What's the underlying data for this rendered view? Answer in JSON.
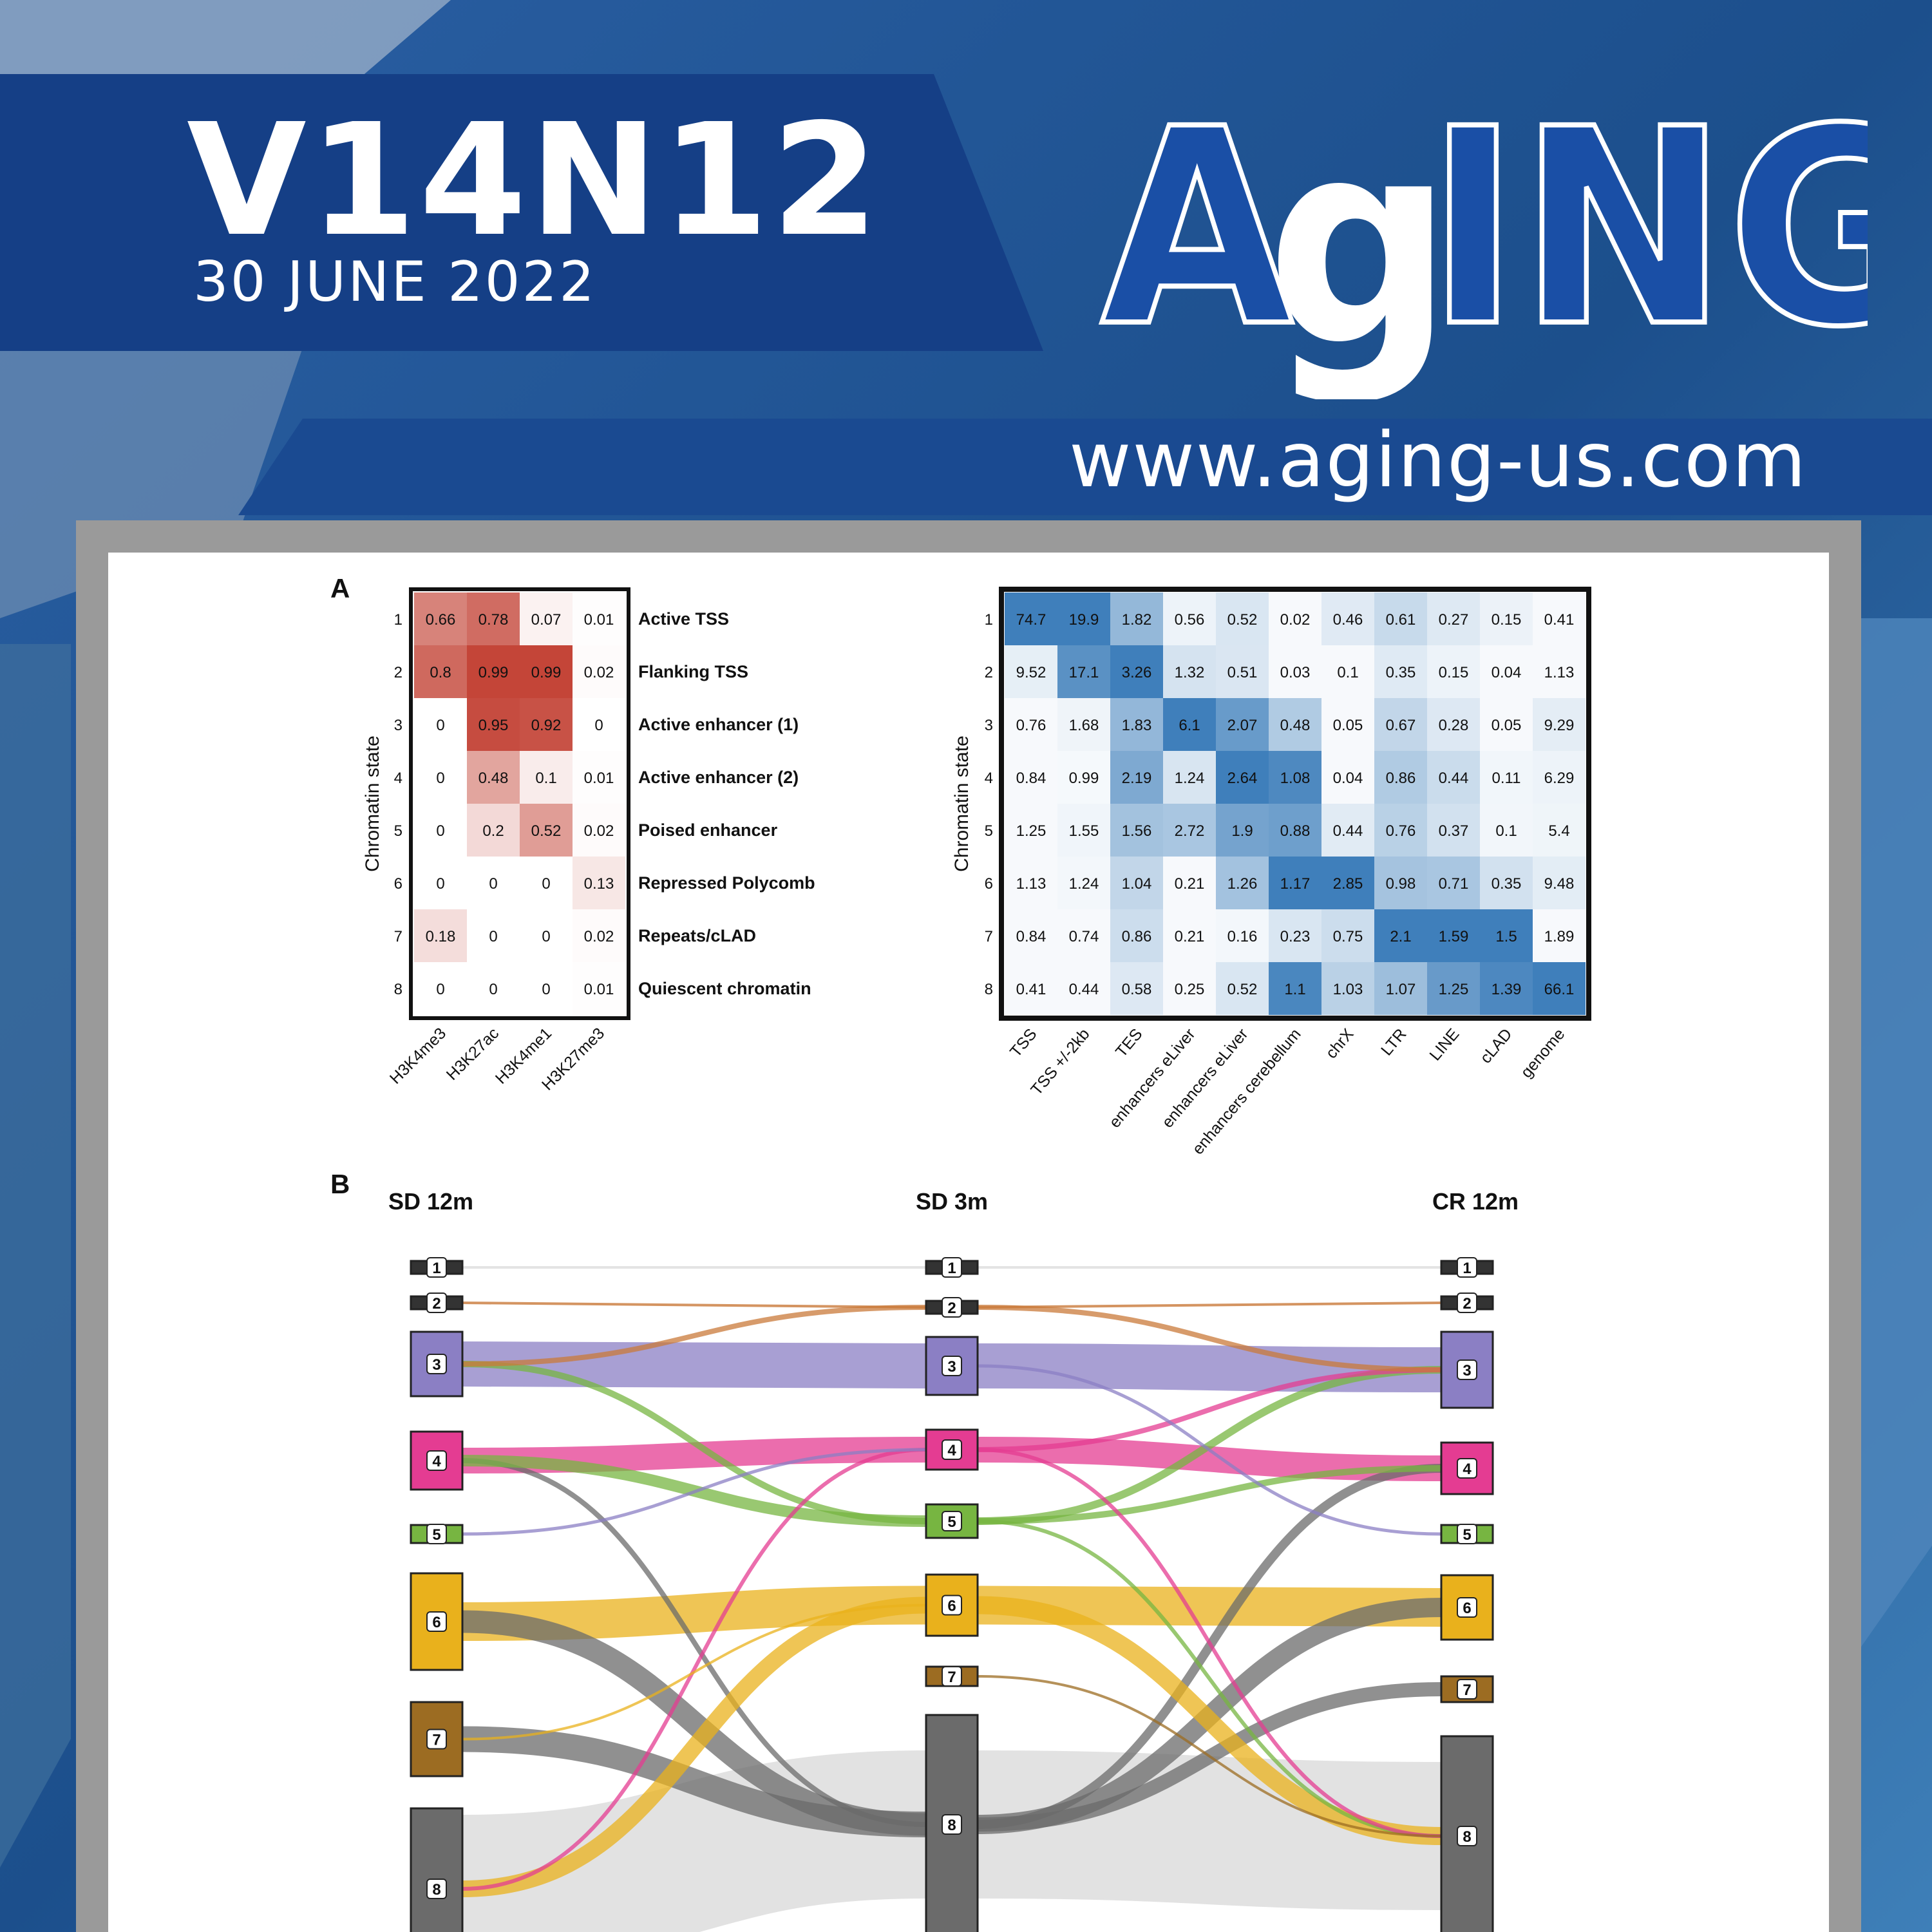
{
  "journal": {
    "volume_issue": "V14N12",
    "date": "30 JUNE 2022",
    "logo_text": "AgING",
    "url": "www.aging-us.com"
  },
  "colors": {
    "header_band": "#153f86",
    "logo_fill": "#1a4fa6",
    "heatmap_red": "#c0392b",
    "heatmap_blue": "#2e74b5",
    "state_3": "#8b7fc4",
    "state_4": "#e43c92",
    "state_5": "#77b541",
    "state_6": "#e9b11c",
    "state_7": "#9c6c22",
    "state_8": "#6b6b6b"
  },
  "figure": {
    "panel_a_label": "A",
    "panel_b_label": "B",
    "y_axis_label": "Chromatin state",
    "states": [
      "1",
      "2",
      "3",
      "4",
      "5",
      "6",
      "7",
      "8"
    ],
    "state_names": [
      "Active TSS",
      "Flanking TSS",
      "Active enhancer (1)",
      "Active enhancer (2)",
      "Poised enhancer",
      "Repressed Polycomb",
      "Repeats/cLAD",
      "Quiescent chromatin"
    ],
    "emission_columns": [
      "H3K4me3",
      "H3K27ac",
      "H3K4me1",
      "H3K27me3"
    ],
    "emission_values": [
      [
        "0.66",
        "0.78",
        "0.07",
        "0.01"
      ],
      [
        "0.8",
        "0.99",
        "0.99",
        "0.02"
      ],
      [
        "0",
        "0.95",
        "0.92",
        "0"
      ],
      [
        "0",
        "0.48",
        "0.1",
        "0.01"
      ],
      [
        "0",
        "0.2",
        "0.52",
        "0.02"
      ],
      [
        "0",
        "0",
        "0",
        "0.13"
      ],
      [
        "0.18",
        "0",
        "0",
        "0.02"
      ],
      [
        "0",
        "0",
        "0",
        "0.01"
      ]
    ],
    "enrichment_columns": [
      "TSS",
      "TSS +/-2kb",
      "TES",
      "enhancers eLiver",
      "enhancers eLiver",
      "enhancers cerebellum",
      "chrX",
      "LTR",
      "LINE",
      "cLAD",
      "genome"
    ],
    "enrichment_values": [
      [
        "74.7",
        "19.9",
        "1.82",
        "0.56",
        "0.52",
        "0.02",
        "0.46",
        "0.61",
        "0.27",
        "0.15",
        "0.41"
      ],
      [
        "9.52",
        "17.1",
        "3.26",
        "1.32",
        "0.51",
        "0.03",
        "0.1",
        "0.35",
        "0.15",
        "0.04",
        "1.13"
      ],
      [
        "0.76",
        "1.68",
        "1.83",
        "6.1",
        "2.07",
        "0.48",
        "0.05",
        "0.67",
        "0.28",
        "0.05",
        "9.29"
      ],
      [
        "0.84",
        "0.99",
        "2.19",
        "1.24",
        "2.64",
        "1.08",
        "0.04",
        "0.86",
        "0.44",
        "0.11",
        "6.29"
      ],
      [
        "1.25",
        "1.55",
        "1.56",
        "2.72",
        "1.9",
        "0.88",
        "0.44",
        "0.76",
        "0.37",
        "0.1",
        "5.4"
      ],
      [
        "1.13",
        "1.24",
        "1.04",
        "0.21",
        "1.26",
        "1.17",
        "2.85",
        "0.98",
        "0.71",
        "0.35",
        "9.48"
      ],
      [
        "0.84",
        "0.74",
        "0.86",
        "0.21",
        "0.16",
        "0.23",
        "0.75",
        "2.1",
        "1.59",
        "1.5",
        "1.89"
      ],
      [
        "0.41",
        "0.44",
        "0.58",
        "0.25",
        "0.52",
        "1.1",
        "1.03",
        "1.07",
        "1.25",
        "1.39",
        "66.1"
      ]
    ],
    "alluvial_columns": [
      "SD 12m",
      "SD 3m",
      "CR 12m"
    ]
  }
}
